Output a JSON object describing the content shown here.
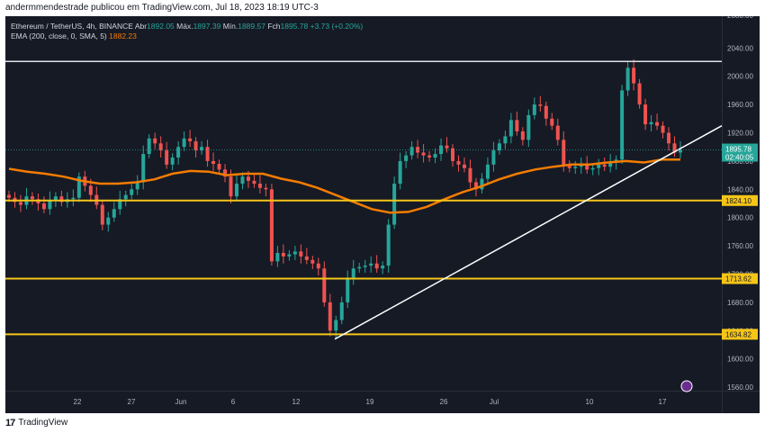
{
  "header": {
    "caption": "andermmendestrade publicou em TradingView.com, Jul 18, 2023 18:19 UTC-3"
  },
  "legend": {
    "symbol": "Ethereum / TetherUS, 4h, BINANCE",
    "open_label": "Abr",
    "open": "1892.05",
    "high_label": "Máx.",
    "high": "1897.39",
    "low_label": "Mín.",
    "low": "1889.57",
    "close_label": "Fch",
    "close": "1895.78",
    "change": "+3.73 (+0.20%)",
    "ema_label": "EMA (200, close, 0, SMA, 5)",
    "ema_value": "1882.23"
  },
  "footer": {
    "brand": "TradingView"
  },
  "colors": {
    "background": "#161a25",
    "up": "#26a69a",
    "down": "#ef5350",
    "ema": "#f57c00",
    "level": "#f5c518",
    "trendline": "#ffffff"
  },
  "chart_data": {
    "type": "line",
    "price_axis_ticks": [
      "2040.00",
      "2000.00",
      "1960.00",
      "1920.00",
      "1880.00",
      "1840.00",
      "1800.00",
      "1760.00",
      "1720.00",
      "1680.00",
      "1640.00",
      "1600.00",
      "1560.00"
    ],
    "price_axis_top_partial": "2080.00",
    "time_axis_ticks": [
      "22",
      "27",
      "Jun",
      "6",
      "12",
      "19",
      "26",
      "Jul",
      "10",
      "17"
    ],
    "ylim": [
      1555,
      2085
    ],
    "last_price": {
      "value": "1895.78",
      "countdown": "02:40:05"
    },
    "levels": [
      {
        "name": "resistance-top",
        "value": 2021,
        "label": ""
      },
      {
        "name": "support-1824",
        "value": 1824.1,
        "label": "1824.10"
      },
      {
        "name": "support-1713",
        "value": 1713.62,
        "label": "1713.62"
      },
      {
        "name": "support-1634",
        "value": 1634.82,
        "label": "1634.82"
      }
    ],
    "trendline": {
      "from": [
        "Jun 15",
        1628
      ],
      "to": [
        "Jul 20",
        1930
      ]
    },
    "series": [
      {
        "name": "Close",
        "values": [
          1828,
          1822,
          1818,
          1830,
          1826,
          1820,
          1812,
          1825,
          1830,
          1822,
          1826,
          1828,
          1858,
          1845,
          1832,
          1818,
          1790,
          1800,
          1812,
          1826,
          1832,
          1840,
          1850,
          1890,
          1912,
          1905,
          1895,
          1875,
          1885,
          1900,
          1912,
          1908,
          1895,
          1900,
          1880,
          1876,
          1868,
          1858,
          1830,
          1848,
          1858,
          1852,
          1848,
          1842,
          1840,
          1738,
          1750,
          1745,
          1748,
          1752,
          1745,
          1740,
          1735,
          1728,
          1680,
          1640,
          1655,
          1680,
          1715,
          1728,
          1730,
          1732,
          1735,
          1728,
          1732,
          1790,
          1848,
          1880,
          1888,
          1900,
          1892,
          1888,
          1885,
          1890,
          1902,
          1898,
          1880,
          1875,
          1870,
          1850,
          1840,
          1855,
          1875,
          1895,
          1905,
          1915,
          1938,
          1922,
          1910,
          1945,
          1960,
          1958,
          1940,
          1930,
          1910,
          1875,
          1870,
          1872,
          1875,
          1868,
          1870,
          1875,
          1872,
          1878,
          1882,
          1980,
          2012,
          1990,
          1960,
          1932,
          1935,
          1930,
          1920,
          1905,
          1892,
          1896
        ]
      },
      {
        "name": "EMA (200, close, 0, SMA, 5)",
        "values": [
          1869,
          1865,
          1862,
          1858,
          1852,
          1848,
          1848,
          1850,
          1854,
          1862,
          1866,
          1865,
          1860,
          1862,
          1862,
          1855,
          1850,
          1842,
          1832,
          1822,
          1812,
          1807,
          1808,
          1815,
          1826,
          1836,
          1844,
          1854,
          1862,
          1868,
          1872,
          1875,
          1875,
          1878,
          1880,
          1878,
          1882,
          1882
        ]
      }
    ]
  }
}
